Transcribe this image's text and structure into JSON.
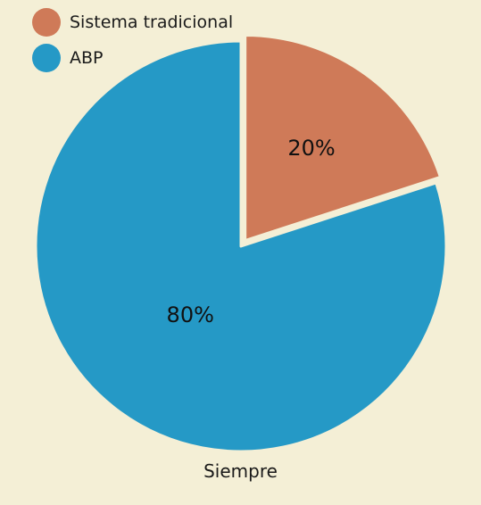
{
  "chart_data": {
    "type": "pie",
    "title": "",
    "category": "Siempre",
    "legend_position": "top-left",
    "series": [
      {
        "name": "Sistema tradicional",
        "value": 20,
        "label": "20%",
        "color": "#cf7a58"
      },
      {
        "name": "ABP",
        "value": 80,
        "label": "80%",
        "color": "#2599c6"
      }
    ],
    "start_angle_deg": 0,
    "direction": "clockwise",
    "exploded_slice": "Sistema tradicional",
    "slice_border_color": "#f4efd6"
  }
}
